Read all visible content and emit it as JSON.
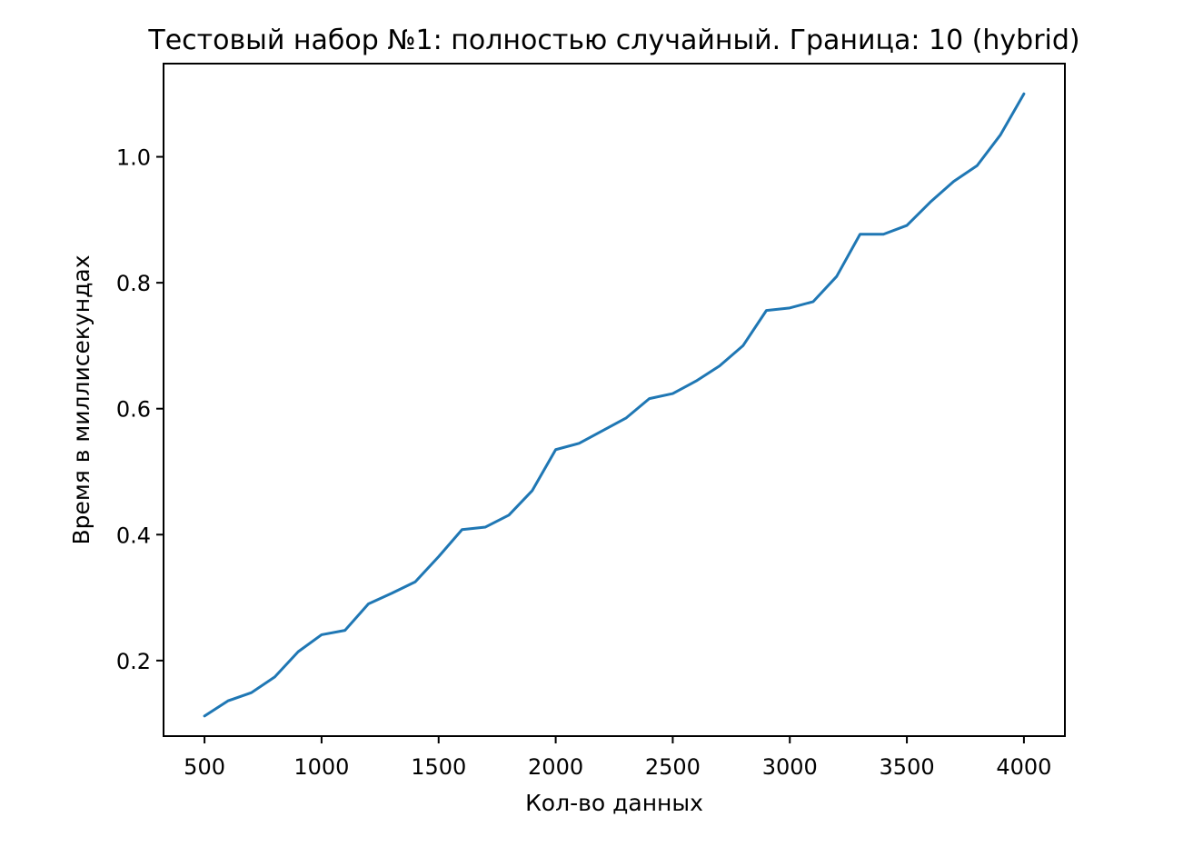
{
  "chart_data": {
    "type": "line",
    "title": "Тестовый набор №1: полностью случайный. Граница: 10 (hybrid)",
    "xlabel": "Кол-во данных",
    "ylabel": "Время в миллисекундах",
    "xlim": [
      325,
      4175
    ],
    "ylim": [
      0.08,
      1.148
    ],
    "xticks": [
      500,
      1000,
      1500,
      2000,
      2500,
      3000,
      3500,
      4000
    ],
    "xtick_labels": [
      "500",
      "1000",
      "1500",
      "2000",
      "2500",
      "3000",
      "3500",
      "4000"
    ],
    "yticks": [
      0.2,
      0.4,
      0.6,
      0.8,
      1.0
    ],
    "ytick_labels": [
      "0.2",
      "0.4",
      "0.6",
      "0.8",
      "1.0"
    ],
    "grid": false,
    "legend": false,
    "series": [
      {
        "color": "#1f77b4",
        "x": [
          500,
          600,
          700,
          800,
          900,
          1000,
          1100,
          1200,
          1300,
          1400,
          1500,
          1600,
          1700,
          1800,
          1900,
          2000,
          2100,
          2200,
          2300,
          2400,
          2500,
          2600,
          2700,
          2800,
          2900,
          3000,
          3100,
          3200,
          3300,
          3400,
          3500,
          3600,
          3700,
          3800,
          3900,
          4000
        ],
        "y": [
          0.112,
          0.136,
          0.149,
          0.174,
          0.214,
          0.241,
          0.248,
          0.29,
          0.307,
          0.325,
          0.365,
          0.408,
          0.412,
          0.431,
          0.47,
          0.535,
          0.545,
          0.565,
          0.585,
          0.616,
          0.624,
          0.644,
          0.668,
          0.7,
          0.756,
          0.76,
          0.77,
          0.81,
          0.877,
          0.877,
          0.891,
          0.928,
          0.961,
          0.986,
          1.035,
          1.1
        ]
      }
    ]
  }
}
